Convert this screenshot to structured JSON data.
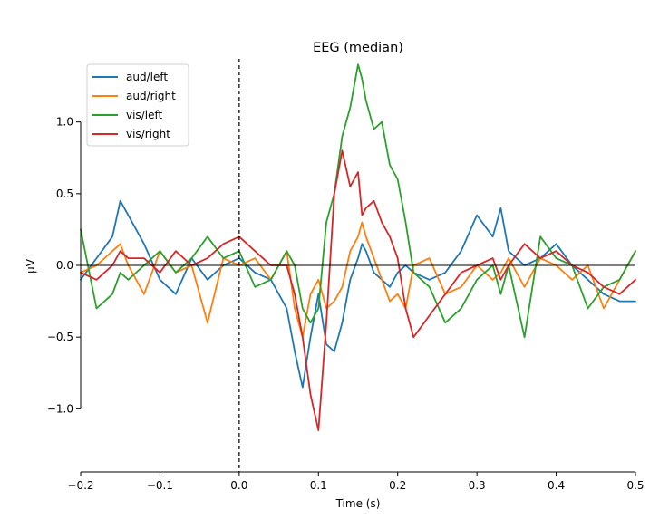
{
  "chart_data": {
    "type": "line",
    "title": "EEG (median)",
    "xlabel": "Time (s)",
    "ylabel": "µV",
    "xlim": [
      -0.2,
      0.5
    ],
    "ylim": [
      -1.44,
      1.44
    ],
    "xticks": [
      -0.2,
      -0.1,
      0.0,
      0.1,
      0.2,
      0.3,
      0.4,
      0.5
    ],
    "xtick_labels": [
      "−0.2",
      "−0.1",
      "0.0",
      "0.1",
      "0.2",
      "0.3",
      "0.4",
      "0.5"
    ],
    "yticks": [
      1.0,
      0.5,
      0.0,
      -0.5,
      -1.0
    ],
    "ytick_labels": [
      "1.0",
      "0.5",
      "0.0",
      "−0.5",
      "−1.0"
    ],
    "zero_line": true,
    "stimulus_onset_line_at": 0.0,
    "legend_placement": "top-left",
    "grid": false,
    "x": [
      -0.2,
      -0.18,
      -0.16,
      -0.15,
      -0.14,
      -0.12,
      -0.1,
      -0.08,
      -0.06,
      -0.04,
      -0.02,
      0.0,
      0.02,
      0.04,
      0.06,
      0.07,
      0.08,
      0.09,
      0.1,
      0.11,
      0.12,
      0.13,
      0.14,
      0.15,
      0.155,
      0.16,
      0.17,
      0.18,
      0.19,
      0.2,
      0.21,
      0.22,
      0.24,
      0.26,
      0.28,
      0.3,
      0.32,
      0.33,
      0.34,
      0.36,
      0.38,
      0.4,
      0.42,
      0.44,
      0.46,
      0.48,
      0.5
    ],
    "series": [
      {
        "name": "aud/left",
        "color": "#1f77b4",
        "values": [
          -0.1,
          0.05,
          0.2,
          0.45,
          0.35,
          0.15,
          -0.1,
          -0.2,
          0.05,
          -0.1,
          0.0,
          0.05,
          -0.05,
          -0.1,
          -0.3,
          -0.6,
          -0.85,
          -0.5,
          -0.2,
          -0.55,
          -0.6,
          -0.4,
          -0.1,
          0.05,
          0.15,
          0.1,
          -0.05,
          -0.1,
          -0.15,
          -0.05,
          0.0,
          -0.05,
          -0.1,
          -0.05,
          0.1,
          0.35,
          0.2,
          0.4,
          0.1,
          0.0,
          0.05,
          0.15,
          0.0,
          -0.1,
          -0.2,
          -0.25,
          -0.25
        ]
      },
      {
        "name": "aud/right",
        "color": "#ff7f0e",
        "values": [
          -0.05,
          0.0,
          0.1,
          0.15,
          0.0,
          -0.2,
          0.1,
          -0.05,
          0.0,
          -0.4,
          0.05,
          0.0,
          0.05,
          -0.1,
          0.1,
          -0.3,
          -0.5,
          -0.2,
          -0.1,
          -0.3,
          -0.25,
          -0.15,
          0.1,
          0.2,
          0.3,
          0.2,
          0.05,
          -0.1,
          -0.25,
          -0.2,
          -0.3,
          0.0,
          0.05,
          -0.2,
          -0.15,
          0.0,
          -0.1,
          -0.05,
          0.05,
          -0.15,
          0.05,
          0.0,
          -0.1,
          0.0,
          -0.3,
          -0.1,
          0.1
        ]
      },
      {
        "name": "vis/left",
        "color": "#2ca02c",
        "values": [
          0.25,
          -0.3,
          -0.2,
          -0.05,
          -0.1,
          0.0,
          0.1,
          -0.05,
          0.05,
          0.2,
          0.05,
          0.1,
          -0.15,
          -0.1,
          0.1,
          0.0,
          -0.3,
          -0.4,
          -0.3,
          0.3,
          0.5,
          0.9,
          1.1,
          1.4,
          1.3,
          1.15,
          0.95,
          1.0,
          0.7,
          0.6,
          0.3,
          -0.05,
          -0.15,
          -0.4,
          -0.3,
          -0.1,
          0.0,
          -0.2,
          0.0,
          -0.5,
          0.2,
          0.05,
          0.0,
          -0.3,
          -0.15,
          -0.1,
          0.1
        ]
      },
      {
        "name": "vis/right",
        "color": "#d62728",
        "values": [
          -0.05,
          -0.1,
          0.0,
          0.1,
          0.05,
          0.05,
          -0.05,
          0.1,
          0.0,
          0.05,
          0.15,
          0.2,
          0.1,
          0.0,
          0.0,
          -0.2,
          -0.5,
          -0.9,
          -1.15,
          -0.4,
          0.5,
          0.8,
          0.55,
          0.65,
          0.35,
          0.4,
          0.45,
          0.3,
          0.2,
          0.05,
          -0.3,
          -0.5,
          -0.35,
          -0.2,
          -0.05,
          0.0,
          0.05,
          -0.1,
          0.0,
          0.15,
          0.05,
          0.1,
          0.0,
          -0.05,
          -0.15,
          -0.2,
          -0.1
        ]
      }
    ]
  }
}
